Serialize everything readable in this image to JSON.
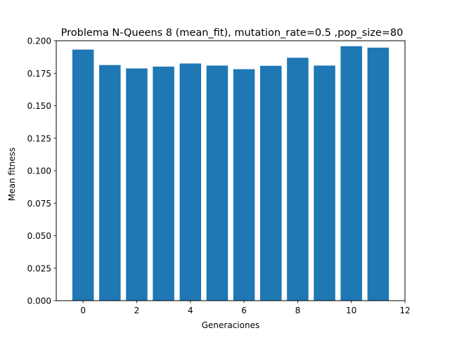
{
  "chart_data": {
    "type": "bar",
    "title": "Problema N-Queens 8 (mean_fit), mutation_rate=0.5 ,pop_size=80",
    "xlabel": "Generaciones",
    "ylabel": "Mean fitness",
    "x": [
      0,
      1,
      2,
      3,
      4,
      5,
      6,
      7,
      8,
      9,
      10,
      11
    ],
    "values": [
      0.1932,
      0.1813,
      0.1787,
      0.1801,
      0.1825,
      0.1809,
      0.1781,
      0.1807,
      0.1869,
      0.1809,
      0.1958,
      0.1947
    ],
    "xlim": [
      -1,
      12
    ],
    "ylim": [
      0,
      0.2
    ],
    "xticks": [
      0,
      2,
      4,
      6,
      8,
      10,
      12
    ],
    "xtick_labels": [
      "0",
      "2",
      "4",
      "6",
      "8",
      "10",
      "12"
    ],
    "yticks": [
      0,
      0.025,
      0.05,
      0.075,
      0.1,
      0.125,
      0.15,
      0.175,
      0.2
    ],
    "ytick_labels": [
      "0.000",
      "0.025",
      "0.050",
      "0.075",
      "0.100",
      "0.125",
      "0.150",
      "0.175",
      "0.200"
    ],
    "bar_color": "#1f77b4",
    "grid": false,
    "legend": "none"
  }
}
